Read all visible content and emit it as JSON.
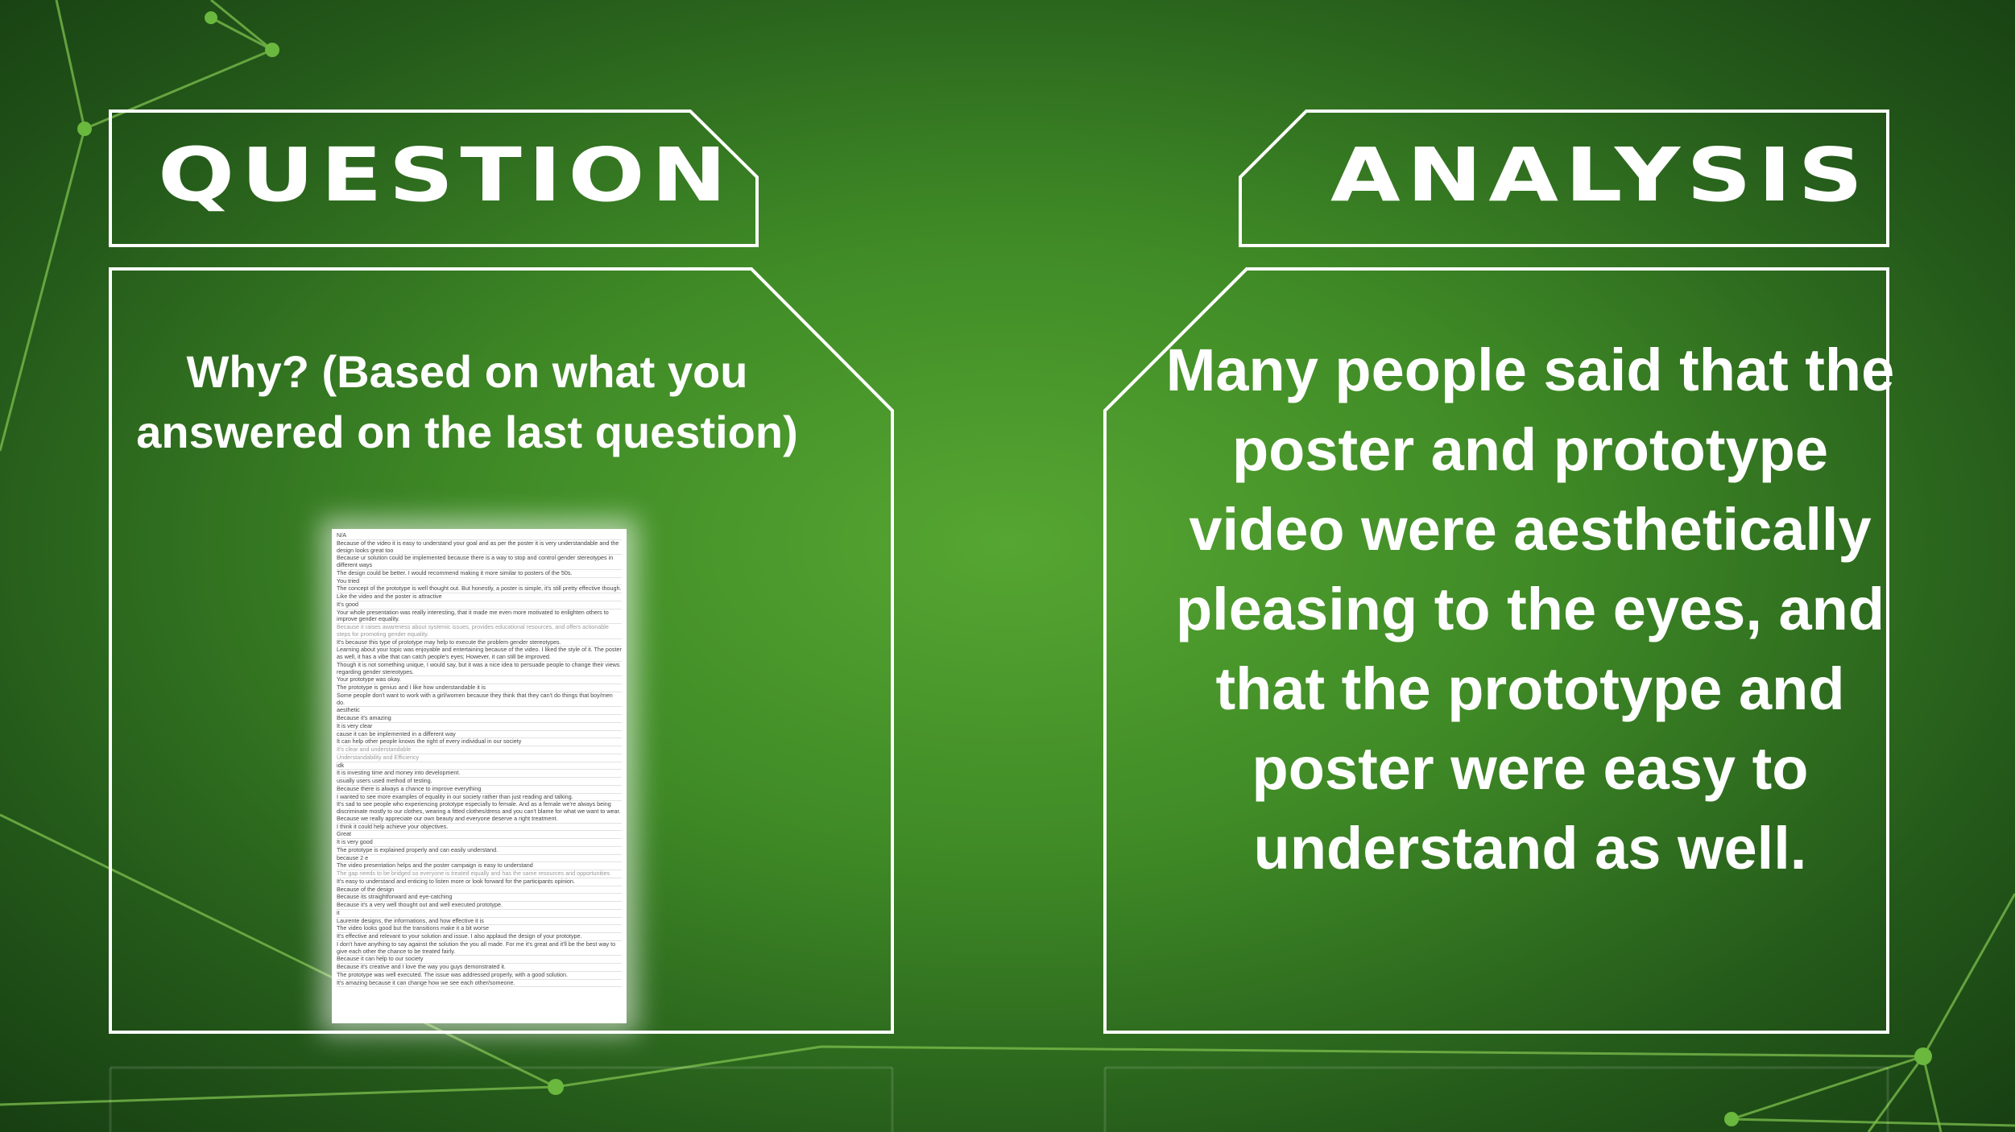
{
  "colors": {
    "bg_center": "#56a632",
    "bg_edge": "#173f12",
    "line": "#ffffff",
    "node": "#6ab83e"
  },
  "question": {
    "heading": "QUESTION",
    "text": "Why? (Based on what you answered on the last question)"
  },
  "analysis": {
    "heading": "ANALYSIS",
    "text": "Many people said that the poster and prototype video were aesthetically pleasing to the eyes, and that the prototype and poster were easy to understand as well."
  },
  "responses": [
    "N/A",
    "Because of the video it is easy to understand your goal and as per the poster it is very understandable and the design looks great too",
    "Because ur solution could be implemented because there is a way to stop and control gender stereotypes in different ways",
    "The design could be better. I would recommend making it more similar to posters of the 50s.",
    "You tried",
    "The concept of the prototype is well thought out. But honestly, a poster is simple, it's still pretty effective though.",
    "Like the video and the poster is attractive",
    "It's good",
    "Your whole presentation was really interesting, that it made me even more motivated to enlighten others to improve gender equality.",
    "Because it raises awareness about systemic issues, provides educational resources, and offers actionable steps for promoting gender equality.",
    "It's because this type of prototype may help to execute the problem gender stereotypes.",
    "Learning about your topic was enjoyable and entertaining because of the video. I liked the style of it. The poster as well, it has a vibe that can catch people's eyes; However, it can still be improved.",
    "Though it is not something unique, I would say, but it was a nice idea to persuade people to change their views regarding gender stereotypes.",
    "Your prototype was okay.",
    "The prototype is genius and I like how understandable it is",
    "Some people don't want to work with a girl/women because they think that they can't do things that boy/men do.",
    "aesthetic",
    "Because it's amazing",
    "It is very clear",
    "cause it can be implemented in a different way",
    "It can help other people knows the right of every individual in our society",
    "It's clear and understandable",
    "Understandability and Efficiency",
    "idk",
    "It is investing time and money into development.",
    "usually users used method of testing.",
    "Because there is always a chance to improve everything",
    "I wanted to see more examples of equality in our society rather than just reading and talking.",
    "It's sad to see people who experiencing prototype especially to female. And as a female we're always being discriminate mostly to our clothes, wearing a fitted clothes/dress and you can't blame for what we want to wear. Because we really appreciate our own beauty and everyone deserve a right treatment.",
    "I think it could help achieve your objectives.",
    "Great",
    "It is very good",
    "The prototype is explained properly and can easily understand.",
    "because 2 e",
    "The video presentation helps and the poster campaign is easy to understand",
    "The gap needs to be bridged so everyone is treated equally and has the same resources and opportunities",
    "It's easy to understand and enticing to listen more or look forward for the participants opinion.",
    "Because of the design",
    "Because its straightforward and eye-catching",
    "Because it's a very well thought out and well executed prototype.",
    "it",
    "Laurente designs, the informations, and how effective it is",
    "The video looks good but the transitions make it a bit worse",
    "It's effective and relevant to your solution and issue. I also applaud the design of your prototype.",
    "I don't have anything to say against the solution the you all made. For me it's great and it'll be the best way to give each other the chance to be treated fairly.",
    "Because it can help to our society",
    "Because it's creative and I love the way you guys demonstrated it.",
    "The prototype was well executed. The issue was addressed properly, with a good solution.",
    "It's amazing because it can change how we see each other/someone."
  ]
}
